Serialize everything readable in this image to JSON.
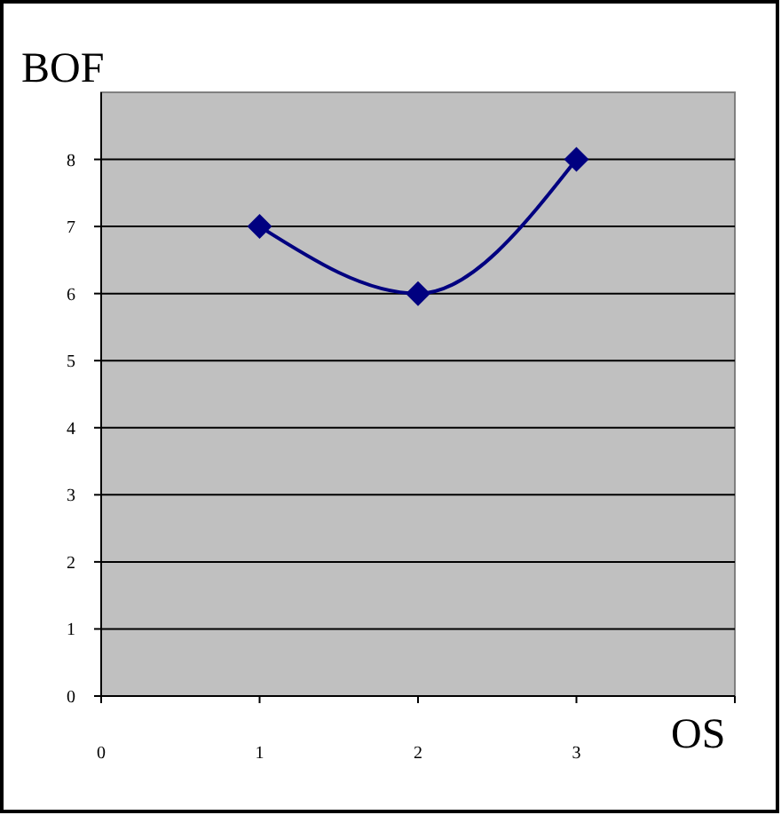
{
  "chart_data": {
    "type": "line",
    "xlabel": "OS",
    "ylabel": "BOF",
    "x": [
      1,
      2,
      3
    ],
    "series": [
      {
        "color": "#000080",
        "values": [
          7,
          6,
          8
        ]
      }
    ],
    "xlim": [
      0,
      4
    ],
    "xticks": [
      0,
      1,
      2,
      3,
      {
        "value": 4,
        "label": null
      }
    ],
    "ylim": [
      0,
      9
    ],
    "yticks": [
      0,
      1,
      2,
      3,
      4,
      5,
      6,
      7,
      8
    ],
    "grid": "y",
    "marker": "diamond",
    "line_style": "solid"
  }
}
